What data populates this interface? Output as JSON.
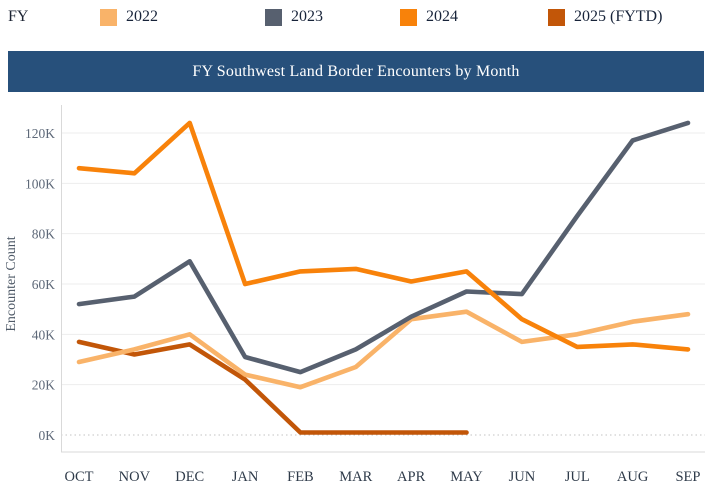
{
  "legend": {
    "fy_label": "FY",
    "items": [
      {
        "label": "2022",
        "color": "#F9B369"
      },
      {
        "label": "2023",
        "color": "#57606F"
      },
      {
        "label": "2024",
        "color": "#F8820A"
      },
      {
        "label": "2025 (FYTD)",
        "color": "#C25608"
      }
    ]
  },
  "title_bar": {
    "text": "FY Southwest Land Border Encounters by Month",
    "bg_color": "#27507B",
    "text_color": "#FFFFFF"
  },
  "chart_data": {
    "type": "line",
    "title": "FY Southwest Land Border Encounters by Month",
    "xlabel": "",
    "ylabel": "Encounter Count",
    "value_unit": "thousands",
    "categories": [
      "OCT",
      "NOV",
      "DEC",
      "JAN",
      "FEB",
      "MAR",
      "APR",
      "MAY",
      "JUN",
      "JUL",
      "AUG",
      "SEP"
    ],
    "y_ticks": [
      {
        "label": "0K",
        "value": 0
      },
      {
        "label": "20K",
        "value": 20
      },
      {
        "label": "40K",
        "value": 40
      },
      {
        "label": "60K",
        "value": 60
      },
      {
        "label": "80K",
        "value": 80
      },
      {
        "label": "100K",
        "value": 100
      },
      {
        "label": "120K",
        "value": 120
      }
    ],
    "ylim": [
      0,
      130
    ],
    "grid": true,
    "legend_position": "top",
    "series": [
      {
        "name": "2022",
        "color": "#F9B369",
        "values": [
          29,
          34,
          40,
          24,
          19,
          27,
          46,
          49,
          37,
          40,
          45,
          48
        ]
      },
      {
        "name": "2023",
        "color": "#57606F",
        "values": [
          52,
          55,
          69,
          31,
          25,
          34,
          47,
          57,
          56,
          87,
          117,
          124
        ]
      },
      {
        "name": "2024",
        "color": "#F8820A",
        "values": [
          106,
          104,
          124,
          60,
          65,
          66,
          61,
          65,
          46,
          35,
          36,
          34
        ]
      },
      {
        "name": "2025 (FYTD)",
        "color": "#C25608",
        "values": [
          37,
          32,
          36,
          22,
          1,
          1,
          1,
          1,
          null,
          null,
          null,
          null
        ]
      }
    ],
    "draw_order": [
      3,
      0,
      1,
      2
    ]
  }
}
